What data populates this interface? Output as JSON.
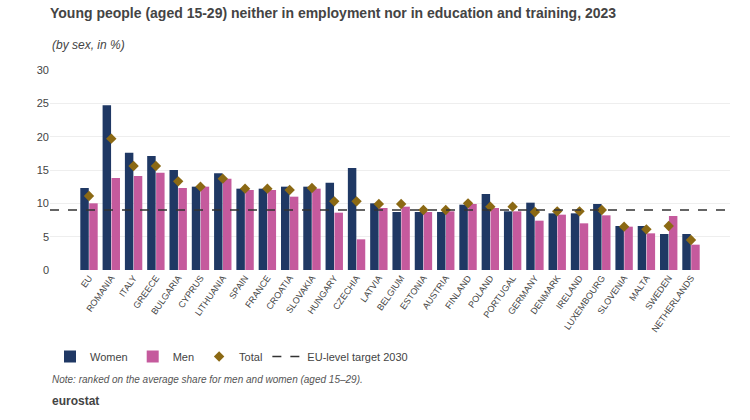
{
  "chart_data": {
    "type": "bar",
    "title": "Young people (aged 15-29) neither in employment nor in education and training, 2023",
    "subtitle": "(by sex, in %)",
    "note": "Note: ranked on the average share for men and women (aged 15–29).",
    "source": "eurostat",
    "categories": [
      "EU",
      "ROMANIA",
      "ITALY",
      "GREECE",
      "BULGARIA",
      "CYPRUS",
      "LITHUANIA",
      "SPAIN",
      "FRANCE",
      "CROATIA",
      "SLOVAKIA",
      "HUNGARY",
      "CZECHIA",
      "LATVIA",
      "BELGIUM",
      "ESTONIA",
      "AUSTRIA",
      "FINLAND",
      "POLAND",
      "PORTUGAL",
      "GERMANY",
      "DENMARK",
      "IRELAND",
      "LUXEMBOURG",
      "SLOVENIA",
      "MALTA",
      "SWEDEN",
      "NETHERLANDS"
    ],
    "series": [
      {
        "name": "Women",
        "type": "bar",
        "color": "#1f3864",
        "values": [
          12.3,
          24.7,
          17.6,
          17.1,
          15.0,
          12.5,
          14.5,
          12.2,
          12.2,
          12.5,
          12.5,
          13.1,
          15.3,
          10.0,
          8.7,
          8.7,
          8.7,
          9.8,
          11.4,
          8.8,
          10.1,
          8.5,
          8.5,
          9.9,
          6.6,
          6.6,
          5.4,
          5.4
        ]
      },
      {
        "name": "Men",
        "type": "bar",
        "color": "#c55a9d",
        "values": [
          10.0,
          13.8,
          14.1,
          14.6,
          12.3,
          12.5,
          13.7,
          12.0,
          12.0,
          11.0,
          12.2,
          8.6,
          4.6,
          9.3,
          9.5,
          8.7,
          8.8,
          9.9,
          9.3,
          8.8,
          7.4,
          8.3,
          7.0,
          8.2,
          6.5,
          5.5,
          8.1,
          3.8
        ]
      },
      {
        "name": "Total",
        "type": "scatter",
        "marker": "diamond",
        "color": "#8B6914",
        "values": [
          11.1,
          19.7,
          15.6,
          15.6,
          13.3,
          12.5,
          13.7,
          12.2,
          12.2,
          12.0,
          12.3,
          10.3,
          10.3,
          9.9,
          9.9,
          9.0,
          9.0,
          10.0,
          9.5,
          9.5,
          8.7,
          8.8,
          8.8,
          9.0,
          6.5,
          6.1,
          6.6,
          4.5
        ]
      },
      {
        "name": "EU-level target 2030",
        "type": "hline",
        "line_style": "dashed",
        "color": "#333333",
        "value": 9.0
      }
    ],
    "ylim": [
      0,
      30
    ],
    "yticks": [
      0,
      5,
      10,
      15,
      20,
      25,
      30
    ],
    "grid": true,
    "legend": "bottom"
  }
}
